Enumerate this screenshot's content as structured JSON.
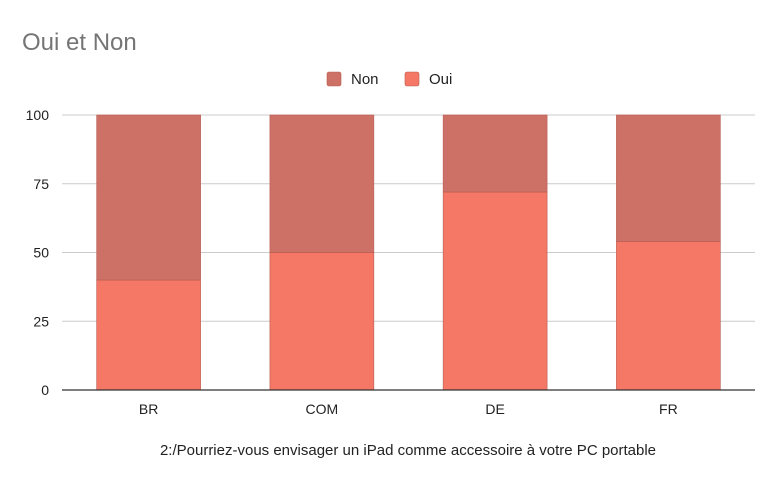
{
  "chart_data": {
    "type": "bar",
    "stacked": true,
    "title": "Oui et Non",
    "xlabel": "2:/Pourriez-vous envisager un iPad comme accessoire à votre PC portable",
    "ylabel": "",
    "categories": [
      "BR",
      "COM",
      "DE",
      "FR"
    ],
    "ylim": [
      0,
      100
    ],
    "yticks": [
      "0",
      "25",
      "50",
      "75",
      "100"
    ],
    "grid": true,
    "legend_position": "top-center",
    "legend_order": [
      "Non",
      "Oui"
    ],
    "series": [
      {
        "name": "Oui",
        "color": "#f47865",
        "values": [
          40,
          50,
          72,
          54
        ]
      },
      {
        "name": "Non",
        "color": "#cd7167",
        "values": [
          60,
          50,
          28,
          46
        ]
      }
    ]
  }
}
